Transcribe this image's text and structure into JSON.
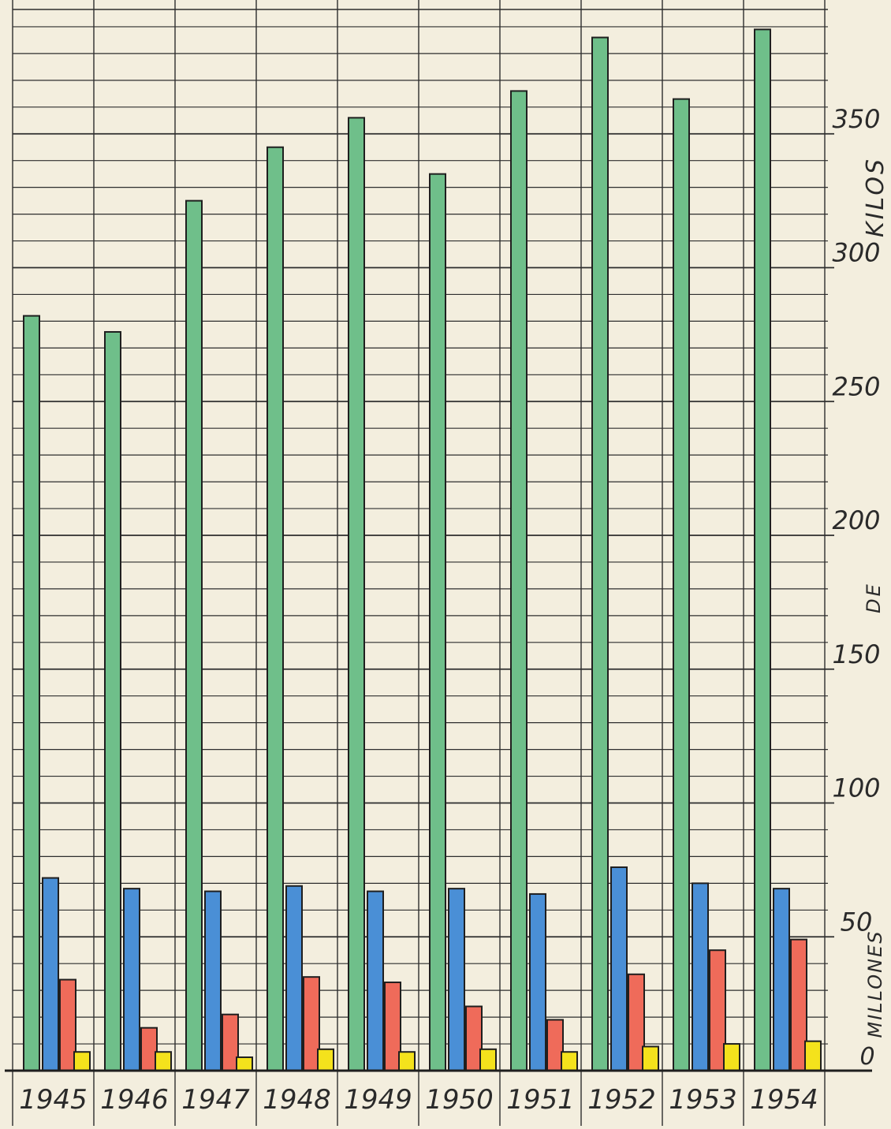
{
  "chart_data": {
    "type": "bar",
    "categories": [
      "1945",
      "1946",
      "1947",
      "1948",
      "1949",
      "1950",
      "1951",
      "1952",
      "1953",
      "1954"
    ],
    "series": [
      {
        "color": "#6fbf8a",
        "values": [
          282,
          276,
          325,
          345,
          356,
          335,
          366,
          386,
          363,
          389
        ]
      },
      {
        "color": "#4a8fd6",
        "values": [
          72,
          68,
          67,
          69,
          67,
          68,
          66,
          76,
          70,
          68
        ]
      },
      {
        "color": "#ef6b5a",
        "values": [
          34,
          16,
          21,
          35,
          33,
          24,
          19,
          36,
          45,
          49
        ]
      },
      {
        "color": "#f4e21c",
        "values": [
          7,
          7,
          5,
          8,
          7,
          8,
          7,
          9,
          10,
          11
        ]
      }
    ],
    "yticks": [
      50,
      100,
      150,
      200,
      250,
      300,
      350
    ],
    "zero_label": "0",
    "ylabel_parts": [
      "KILOS",
      "DE",
      "MILLONES"
    ],
    "ylim": [
      0,
      395
    ],
    "grid": true,
    "gridline_step": 10
  }
}
